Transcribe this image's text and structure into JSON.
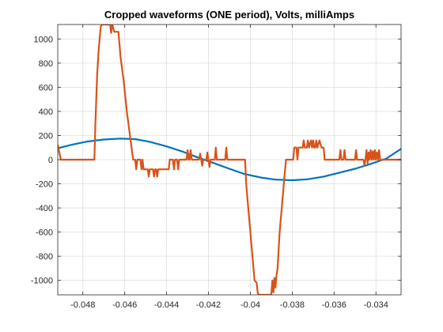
{
  "chart_data": {
    "type": "line",
    "title": "Cropped waveforms (ONE period), Volts, milliAmps",
    "xlabel": "",
    "ylabel": "",
    "xlim": [
      -0.0492,
      -0.0328
    ],
    "ylim": [
      -1120,
      1120
    ],
    "x_ticks": [
      -0.048,
      -0.046,
      -0.044,
      -0.042,
      -0.04,
      -0.038,
      -0.036,
      -0.034
    ],
    "x_tick_labels": [
      "-0.048",
      "-0.046",
      "-0.044",
      "-0.042",
      "-0.04",
      "-0.038",
      "-0.036",
      "-0.034"
    ],
    "y_ticks": [
      -1000,
      -800,
      -600,
      -400,
      -200,
      0,
      200,
      400,
      600,
      800,
      1000
    ],
    "y_tick_labels": [
      "-1000",
      "-800",
      "-600",
      "-400",
      "-200",
      "0",
      "200",
      "400",
      "600",
      "800",
      "1000"
    ],
    "grid": true,
    "box": true,
    "series": [
      {
        "color": "#0072BD",
        "points": [
          [
            -0.0492,
            95
          ],
          [
            -0.0485,
            125
          ],
          [
            -0.0478,
            150
          ],
          [
            -0.047,
            167
          ],
          [
            -0.0462,
            175
          ],
          [
            -0.0455,
            170
          ],
          [
            -0.0448,
            148
          ],
          [
            -0.044,
            110
          ],
          [
            -0.0432,
            65
          ],
          [
            -0.0425,
            18
          ],
          [
            -0.0418,
            -25
          ],
          [
            -0.041,
            -75
          ],
          [
            -0.0403,
            -118
          ],
          [
            -0.0395,
            -148
          ],
          [
            -0.0388,
            -165
          ],
          [
            -0.038,
            -170
          ],
          [
            -0.0373,
            -163
          ],
          [
            -0.0365,
            -140
          ],
          [
            -0.0358,
            -110
          ],
          [
            -0.035,
            -75
          ],
          [
            -0.0343,
            -38
          ],
          [
            -0.0335,
            10
          ],
          [
            -0.0328,
            90
          ]
        ]
      },
      {
        "color": "#D95319",
        "points": [
          [
            -0.0492,
            120
          ],
          [
            -0.04905,
            0
          ],
          [
            -0.0476,
            0
          ],
          [
            -0.04745,
            0
          ],
          [
            -0.0474,
            300
          ],
          [
            -0.04732,
            700
          ],
          [
            -0.04725,
            900
          ],
          [
            -0.04715,
            1100
          ],
          [
            -0.0471,
            1120
          ],
          [
            -0.0467,
            1120
          ],
          [
            -0.04665,
            1050
          ],
          [
            -0.0466,
            1120
          ],
          [
            -0.0465,
            1060
          ],
          [
            -0.0463,
            1060
          ],
          [
            -0.0462,
            850
          ],
          [
            -0.04605,
            650
          ],
          [
            -0.0459,
            400
          ],
          [
            -0.04575,
            200
          ],
          [
            -0.0456,
            0
          ],
          [
            -0.0455,
            0
          ],
          [
            -0.04545,
            -80
          ],
          [
            -0.0454,
            0
          ],
          [
            -0.04525,
            0
          ],
          [
            -0.0452,
            -80
          ],
          [
            -0.04515,
            0
          ],
          [
            -0.0451,
            -80
          ],
          [
            -0.0449,
            -80
          ],
          [
            -0.04485,
            -140
          ],
          [
            -0.0448,
            -80
          ],
          [
            -0.04465,
            -80
          ],
          [
            -0.0446,
            -140
          ],
          [
            -0.04455,
            -80
          ],
          [
            -0.0445,
            -80
          ],
          [
            -0.04445,
            -140
          ],
          [
            -0.0444,
            -80
          ],
          [
            -0.0439,
            -80
          ],
          [
            -0.04385,
            0
          ],
          [
            -0.0437,
            0
          ],
          [
            -0.04365,
            -80
          ],
          [
            -0.0436,
            0
          ],
          [
            -0.0435,
            0
          ],
          [
            -0.04345,
            -80
          ],
          [
            -0.0434,
            0
          ],
          [
            -0.04305,
            0
          ],
          [
            -0.043,
            80
          ],
          [
            -0.04295,
            0
          ],
          [
            -0.0429,
            0
          ],
          [
            -0.04285,
            80
          ],
          [
            -0.0428,
            0
          ],
          [
            -0.04245,
            0
          ],
          [
            -0.0424,
            50
          ],
          [
            -0.04235,
            0
          ],
          [
            -0.0423,
            -50
          ],
          [
            -0.04225,
            0
          ],
          [
            -0.0421,
            0
          ],
          [
            -0.04205,
            60
          ],
          [
            -0.042,
            0
          ],
          [
            -0.04195,
            -60
          ],
          [
            -0.0419,
            0
          ],
          [
            -0.0417,
            0
          ],
          [
            -0.04165,
            100
          ],
          [
            -0.0416,
            0
          ],
          [
            -0.0412,
            0
          ],
          [
            -0.04115,
            100
          ],
          [
            -0.0411,
            0
          ],
          [
            -0.04025,
            0
          ],
          [
            -0.0402,
            -200
          ],
          [
            -0.0401,
            -400
          ],
          [
            -0.04,
            -600
          ],
          [
            -0.0399,
            -800
          ],
          [
            -0.0398,
            -1000
          ],
          [
            -0.0397,
            -1020
          ],
          [
            -0.03965,
            -1100
          ],
          [
            -0.0396,
            -1120
          ],
          [
            -0.039,
            -1120
          ],
          [
            -0.03895,
            -1000
          ],
          [
            -0.0389,
            -1100
          ],
          [
            -0.03885,
            -980
          ],
          [
            -0.0388,
            -1060
          ],
          [
            -0.03875,
            -960
          ],
          [
            -0.0387,
            -900
          ],
          [
            -0.0386,
            -600
          ],
          [
            -0.0385,
            -400
          ],
          [
            -0.0384,
            -200
          ],
          [
            -0.0383,
            0
          ],
          [
            -0.03795,
            0
          ],
          [
            -0.0379,
            100
          ],
          [
            -0.0378,
            100
          ],
          [
            -0.03775,
            0
          ],
          [
            -0.0377,
            100
          ],
          [
            -0.0375,
            100
          ],
          [
            -0.03745,
            160
          ],
          [
            -0.0374,
            100
          ],
          [
            -0.0373,
            100
          ],
          [
            -0.03725,
            160
          ],
          [
            -0.0372,
            100
          ],
          [
            -0.0371,
            160
          ],
          [
            -0.03705,
            100
          ],
          [
            -0.037,
            160
          ],
          [
            -0.03695,
            100
          ],
          [
            -0.0369,
            100
          ],
          [
            -0.03685,
            160
          ],
          [
            -0.0368,
            100
          ],
          [
            -0.0367,
            160
          ],
          [
            -0.0366,
            100
          ],
          [
            -0.0365,
            100
          ],
          [
            -0.03645,
            0
          ],
          [
            -0.036,
            0
          ],
          [
            -0.03575,
            0
          ],
          [
            -0.0357,
            80
          ],
          [
            -0.03565,
            0
          ],
          [
            -0.03555,
            0
          ],
          [
            -0.0355,
            80
          ],
          [
            -0.03545,
            0
          ],
          [
            -0.035,
            0
          ],
          [
            -0.03495,
            80
          ],
          [
            -0.0349,
            0
          ],
          [
            -0.0346,
            0
          ],
          [
            -0.03455,
            -50
          ],
          [
            -0.0345,
            0
          ],
          [
            -0.03445,
            80
          ],
          [
            -0.0344,
            -30
          ],
          [
            -0.03435,
            60
          ],
          [
            -0.0343,
            0
          ],
          [
            -0.03425,
            80
          ],
          [
            -0.0342,
            0
          ],
          [
            -0.03415,
            70
          ],
          [
            -0.0341,
            0
          ],
          [
            -0.03405,
            80
          ],
          [
            -0.034,
            0
          ],
          [
            -0.03395,
            60
          ],
          [
            -0.0339,
            0
          ],
          [
            -0.03385,
            80
          ],
          [
            -0.0338,
            0
          ],
          [
            -0.0328,
            0
          ]
        ]
      }
    ]
  }
}
